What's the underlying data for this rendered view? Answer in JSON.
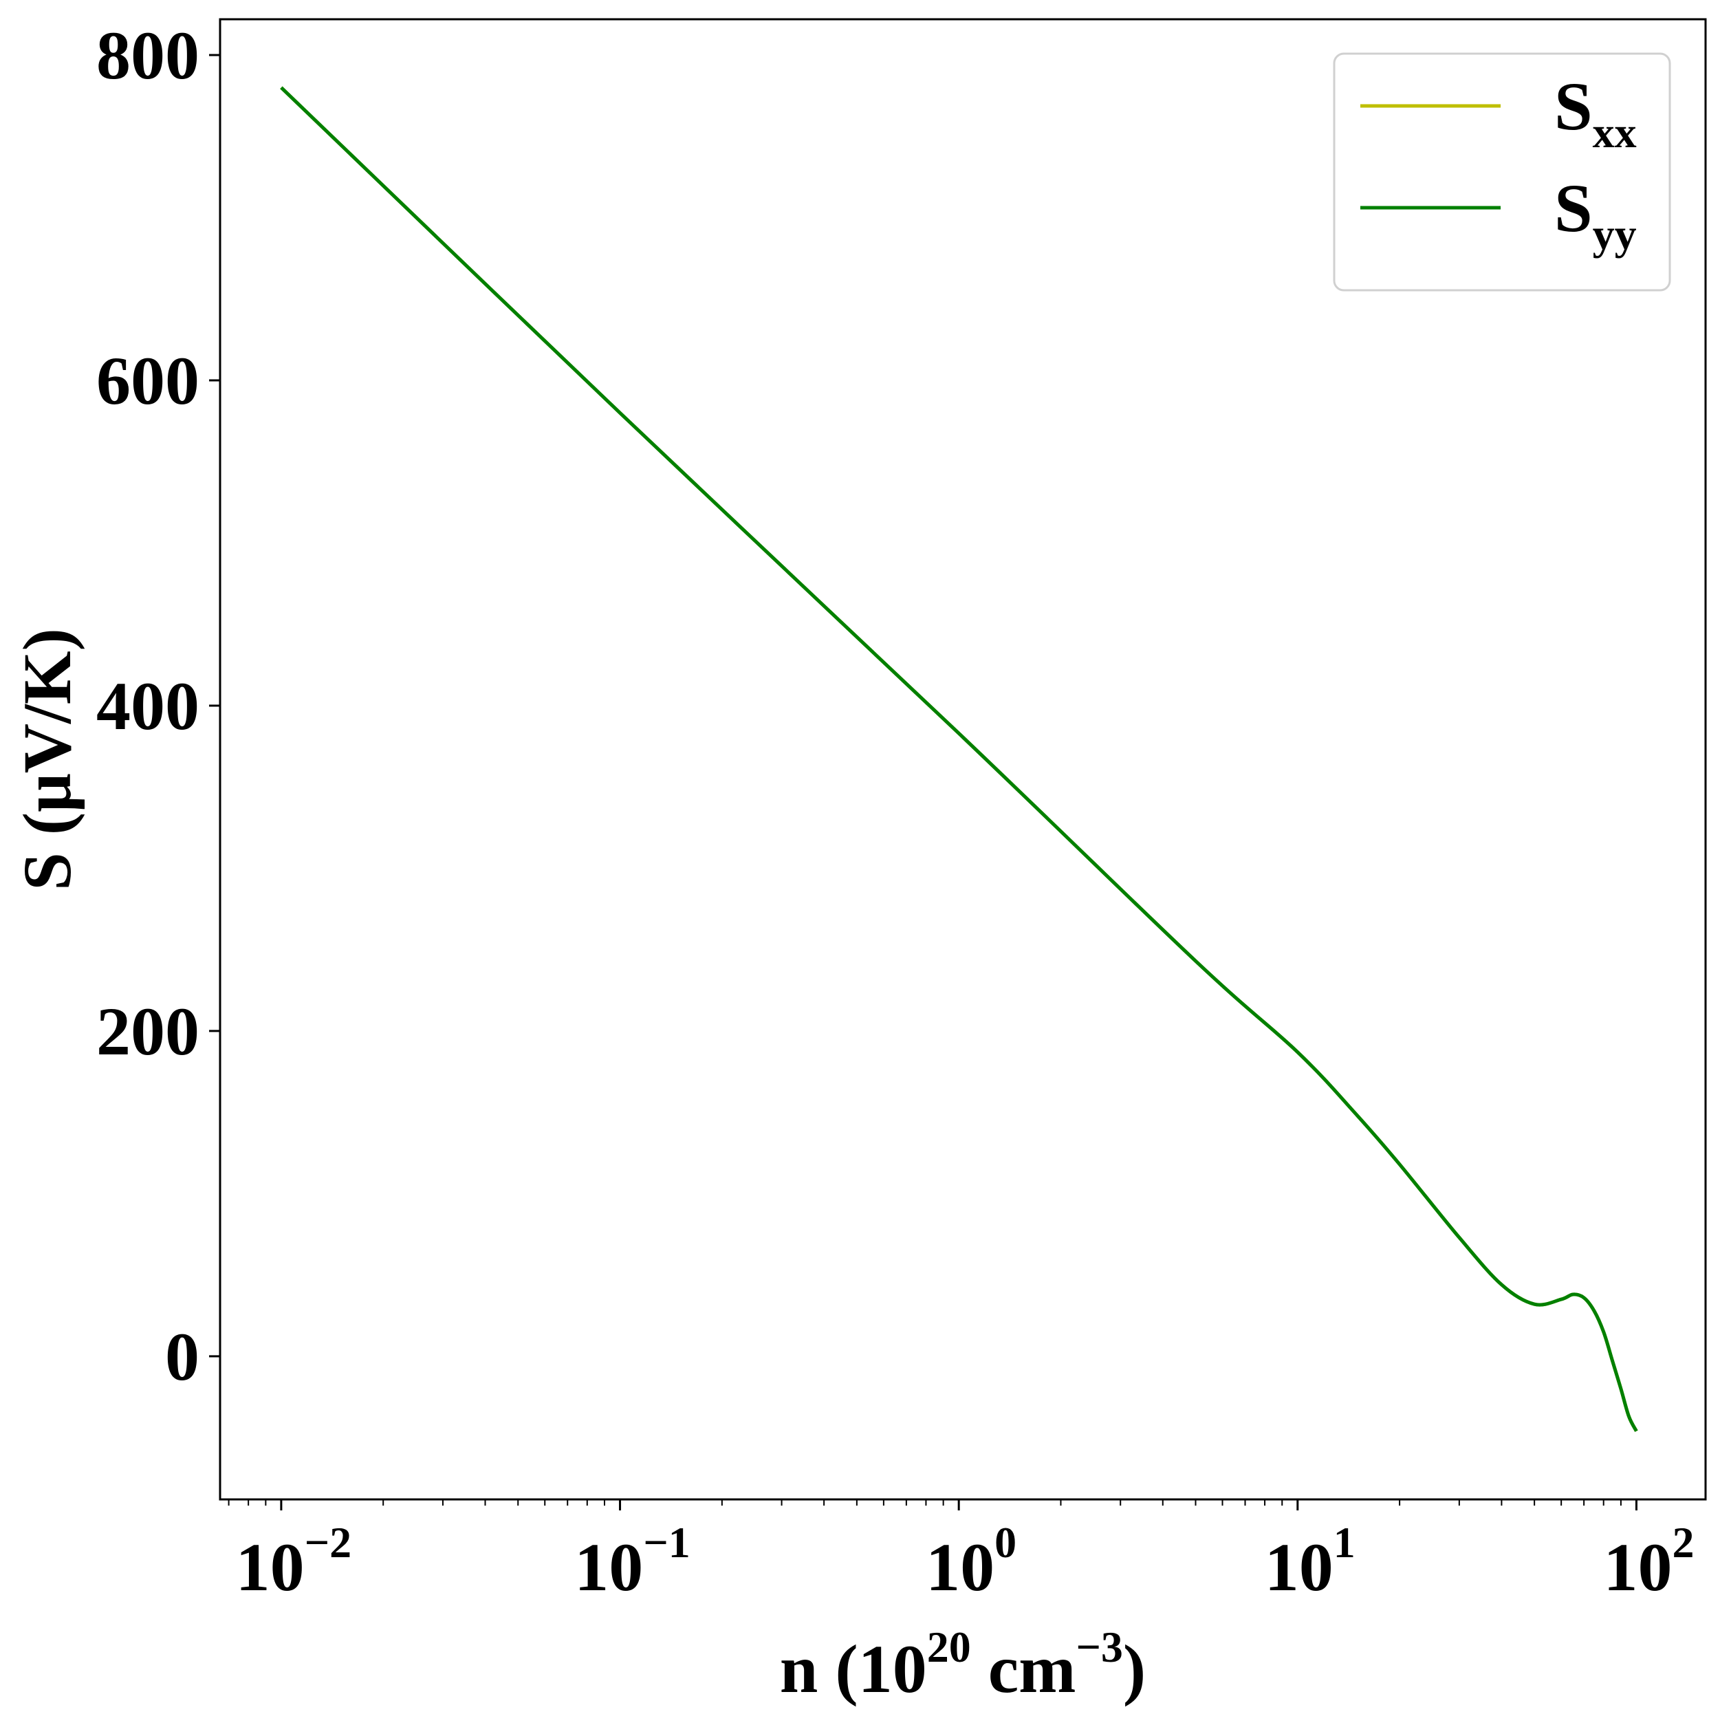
{
  "chart_data": {
    "type": "line",
    "title": "",
    "xlabel": {
      "base": "n (10",
      "sup1": "20",
      "mid": " cm",
      "sup2": "−3",
      "end": ")"
    },
    "ylabel": "S (μV/K)",
    "xscale": "log",
    "xlim": [
      0.0066,
      160
    ],
    "ylim": [
      -88,
      822
    ],
    "grid": false,
    "legend_position": "top-right",
    "x_ticks": [
      {
        "value": 0.01,
        "base": "10",
        "exp": "−2"
      },
      {
        "value": 0.1,
        "base": "10",
        "exp": "−1"
      },
      {
        "value": 1,
        "base": "10",
        "exp": "0"
      },
      {
        "value": 10,
        "base": "10",
        "exp": "1"
      },
      {
        "value": 100,
        "base": "10",
        "exp": "2"
      }
    ],
    "y_ticks": [
      {
        "value": 0,
        "label": "0"
      },
      {
        "value": 200,
        "label": "200"
      },
      {
        "value": 400,
        "label": "400"
      },
      {
        "value": 600,
        "label": "600"
      },
      {
        "value": 800,
        "label": "800"
      }
    ],
    "series": [
      {
        "name": {
          "main": "S",
          "sub": "xx"
        },
        "color": "#bfbf00",
        "x": [
          0.01,
          0.1,
          1,
          5,
          10,
          15,
          20,
          30,
          40,
          50,
          60,
          65,
          70,
          75,
          80,
          85,
          90,
          95,
          100
        ],
        "y": [
          780,
          580,
          383,
          243,
          187,
          148,
          118,
          73,
          44,
          32,
          35,
          38,
          36,
          28,
          15,
          -3,
          -20,
          -37,
          -46
        ]
      },
      {
        "name": {
          "main": "S",
          "sub": "yy"
        },
        "color": "#008000",
        "x": [
          0.01,
          0.1,
          1,
          5,
          10,
          15,
          20,
          30,
          40,
          50,
          60,
          65,
          70,
          75,
          80,
          85,
          90,
          95,
          100
        ],
        "y": [
          780,
          580,
          383,
          243,
          187,
          148,
          118,
          73,
          44,
          32,
          35,
          38,
          36,
          28,
          15,
          -3,
          -20,
          -37,
          -46
        ]
      }
    ]
  }
}
